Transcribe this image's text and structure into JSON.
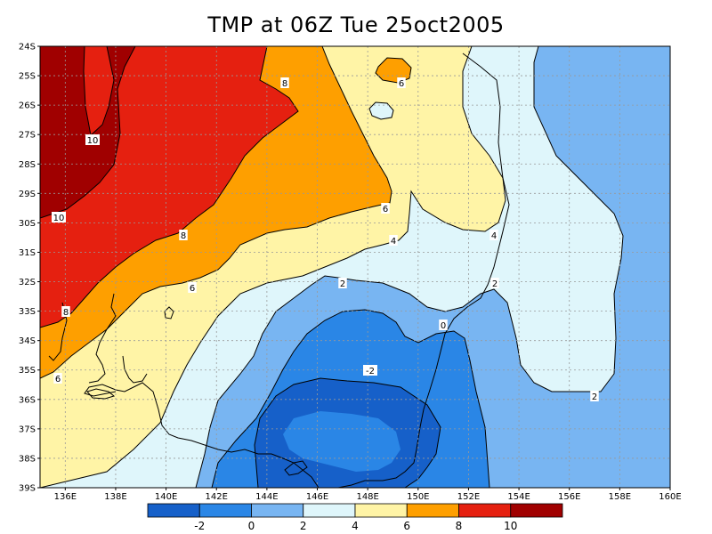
{
  "title": "TMP at 06Z Tue 25oct2005",
  "colors": {
    "lt_neg2": "#1660c9",
    "neg2_0": "#2a86e6",
    "0_2": "#78b5f2",
    "2_4": "#dff6fb",
    "4_6": "#fff4a6",
    "6_8": "#fe9f00",
    "8_10": "#e52010",
    "gt_10": "#a00000"
  },
  "lat_ticks": [
    "24S",
    "25S",
    "26S",
    "27S",
    "28S",
    "29S",
    "30S",
    "31S",
    "32S",
    "33S",
    "34S",
    "35S",
    "36S",
    "37S",
    "38S",
    "39S"
  ],
  "lon_ticks": [
    "136E",
    "138E",
    "140E",
    "142E",
    "144E",
    "146E",
    "148E",
    "150E",
    "152E",
    "154E",
    "156E",
    "158E",
    "160E"
  ],
  "contour_labels": [
    "10",
    "10",
    "8",
    "8",
    "8",
    "6",
    "6",
    "6",
    "6",
    "4",
    "4",
    "2",
    "2",
    "2",
    "0",
    "-2"
  ],
  "colorbar": {
    "labels": [
      "-2",
      "0",
      "2",
      "4",
      "6",
      "8",
      "10"
    ]
  }
}
